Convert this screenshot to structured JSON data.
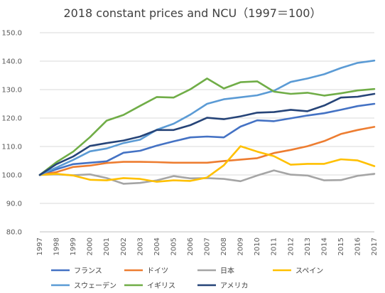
{
  "chart_data": {
    "type": "line",
    "title": "2018 constant prices and NCU（1997＝100）",
    "xlabel": "",
    "ylabel": "",
    "x": [
      "1997",
      "1998",
      "1999",
      "2000",
      "2001",
      "2002",
      "2003",
      "2004",
      "2005",
      "2006",
      "2007",
      "2008",
      "2009",
      "2010",
      "2011",
      "2012",
      "2013",
      "2014",
      "2015",
      "2016",
      "2017"
    ],
    "ylim": [
      80,
      150
    ],
    "yticks": [
      "80.0",
      "90.0",
      "100.0",
      "110.0",
      "120.0",
      "130.0",
      "140.0",
      "150.0"
    ],
    "grid": true,
    "legend_position": "bottom",
    "series": [
      {
        "name": "フランス",
        "color": "#4472c4",
        "values": [
          100,
          102,
          103.8,
          104.3,
          104.8,
          107.8,
          108.5,
          110.3,
          111.8,
          113.2,
          113.5,
          113.2,
          117.0,
          119.2,
          118.9,
          119.9,
          120.9,
          121.7,
          122.9,
          124.2,
          125.0
        ]
      },
      {
        "name": "ドイツ",
        "color": "#ed7d31",
        "values": [
          100,
          101,
          102.8,
          103.3,
          104.2,
          104.6,
          104.6,
          104.5,
          104.3,
          104.3,
          104.3,
          104.9,
          105.4,
          105.9,
          107.7,
          108.8,
          110.1,
          111.9,
          114.4,
          115.8,
          116.9
        ]
      },
      {
        "name": "日本",
        "color": "#a5a5a5",
        "values": [
          100,
          100.2,
          99.9,
          100.2,
          98.9,
          96.9,
          97.2,
          98.1,
          99.6,
          98.8,
          98.9,
          98.6,
          97.8,
          99.8,
          101.6,
          100.1,
          99.8,
          98.1,
          98.2,
          99.7,
          100.4
        ]
      },
      {
        "name": "スペイン",
        "color": "#ffc000",
        "values": [
          100,
          100.4,
          99.8,
          98.3,
          98.1,
          98.9,
          98.6,
          97.6,
          98.1,
          97.9,
          99.1,
          103.4,
          110.1,
          108.2,
          106.6,
          103.6,
          103.9,
          103.9,
          105.5,
          105.1,
          103.1
        ]
      },
      {
        "name": "スウェーデン",
        "color": "#5b9bd5",
        "values": [
          100,
          102.6,
          105.3,
          108.3,
          109.3,
          111.2,
          112.4,
          115.9,
          118.0,
          121.2,
          125.0,
          126.6,
          127.3,
          128.0,
          129.6,
          132.7,
          133.9,
          135.4,
          137.6,
          139.4,
          140.2
        ]
      },
      {
        "name": "イギリス",
        "color": "#70ad47",
        "values": [
          100,
          104.5,
          108.2,
          113.3,
          119.1,
          121.1,
          124.3,
          127.4,
          127.2,
          130.1,
          133.9,
          130.4,
          132.6,
          132.9,
          129.3,
          128.5,
          128.9,
          127.9,
          128.7,
          129.7,
          130.2
        ]
      },
      {
        "name": "アメリカ",
        "color": "#264478",
        "values": [
          100,
          103.8,
          106.5,
          110.2,
          111.2,
          112.1,
          113.5,
          115.8,
          115.8,
          117.5,
          120.1,
          119.6,
          120.6,
          121.9,
          122.1,
          122.9,
          122.4,
          124.4,
          127.2,
          127.5,
          128.5
        ]
      }
    ]
  }
}
